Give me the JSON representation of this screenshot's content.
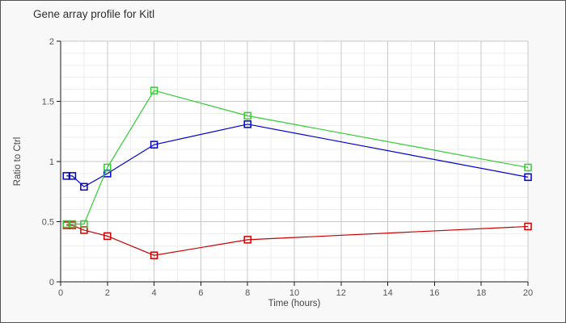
{
  "window": {
    "background_color": "#f8f8f8",
    "border_color": "#545454"
  },
  "title": "Gene array profile for Kitl",
  "chart_data": {
    "type": "line",
    "title": "Gene array profile for Kitl",
    "xlabel": "Time (hours)",
    "ylabel": "Ratio to Ctrl",
    "xlim": [
      0,
      20
    ],
    "ylim": [
      0,
      2
    ],
    "x_major_ticks": [
      0,
      2,
      4,
      6,
      8,
      10,
      12,
      14,
      16,
      18,
      20
    ],
    "y_major_ticks": [
      0,
      0.5,
      1,
      1.5,
      2
    ],
    "x_minor_step": 1,
    "y_minor_step": 0.1,
    "grid": true,
    "legend_position": "none",
    "marker": "open-square",
    "x": [
      0.25,
      0.5,
      1,
      2,
      4,
      8,
      20
    ],
    "series": [
      {
        "name": "red-series",
        "color": "#cc0000",
        "values": [
          0.47,
          0.47,
          0.43,
          0.38,
          0.22,
          0.35,
          0.46
        ]
      },
      {
        "name": "blue-series",
        "color": "#0000cc",
        "values": [
          0.88,
          0.88,
          0.79,
          0.9,
          1.14,
          1.31,
          0.87
        ]
      },
      {
        "name": "green-series",
        "color": "#33cc33",
        "values": [
          0.48,
          0.48,
          0.48,
          0.95,
          1.59,
          1.38,
          0.95
        ]
      }
    ],
    "style": {
      "plot_background": "#ffffff",
      "minor_grid_color": "#ededed",
      "major_grid_color": "#c8c8c8",
      "axis_color": "#1a1a1a",
      "tick_label_color": "#555555",
      "axis_title_color": "#444444"
    }
  }
}
